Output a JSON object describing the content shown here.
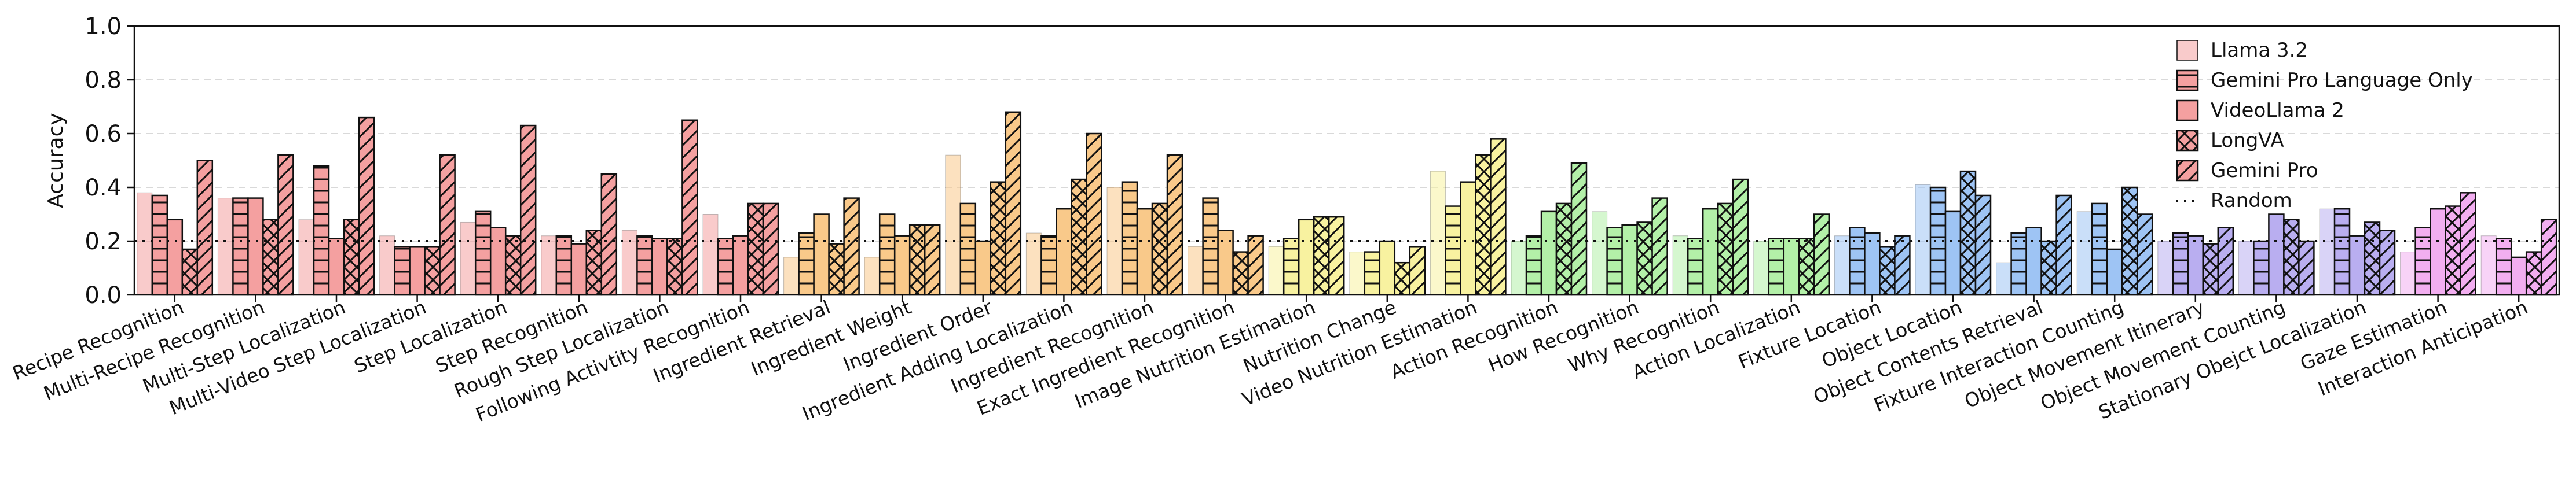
{
  "chart_data": {
    "type": "bar",
    "ylabel": "Accuracy",
    "ylim": [
      0,
      1.0
    ],
    "yticks": [
      "0.0",
      "0.2",
      "0.4",
      "0.6",
      "0.8",
      "1.0"
    ],
    "grid": "horizontal-dashed",
    "legend_position": "top-right",
    "random_baseline": {
      "name": "Random",
      "value": 0.2
    },
    "categories": [
      "Recipe Recognition",
      "Multi-Recipe Recognition",
      "Multi-Step Localization",
      "Multi-Video Step Localization",
      "Step Localization",
      "Step Recognition",
      "Rough Step Localization",
      "Following Activtity Recognition",
      "Ingredient Retrieval",
      "Ingredient Weight",
      "Ingredient Order",
      "Ingredient Adding Localization",
      "Ingredient Recognition",
      "Exact Ingredient Recognition",
      "Image Nutrition Estimation",
      "Nutrition Change",
      "Video Nutrition Estimation",
      "Action Recognition",
      "How Recognition",
      "Why Recognition",
      "Action Localization",
      "Fixture Location",
      "Object Location",
      "Object Contents Retrieval",
      "Fixture Interaction Counting",
      "Object Movement Itinerary",
      "Object Movement Counting",
      "Stationary Obejct Localization",
      "Gaze Estimation",
      "Interaction Anticipation"
    ],
    "category_colors": [
      "#f4a0a0",
      "#f4a0a0",
      "#f4a0a0",
      "#f4a0a0",
      "#f4a0a0",
      "#f4a0a0",
      "#f4a0a0",
      "#f4a0a0",
      "#f9c98a",
      "#f9c98a",
      "#f9c98a",
      "#f9c98a",
      "#f9c98a",
      "#f9c98a",
      "#f8f2a0",
      "#f8f2a0",
      "#f8f2a0",
      "#b3f0a8",
      "#b3f0a8",
      "#b3f0a8",
      "#b3f0a8",
      "#9ec4f4",
      "#9ec4f4",
      "#9ec4f4",
      "#9ec4f4",
      "#b9aef0",
      "#b9aef0",
      "#b9aef0",
      "#f2aef0",
      "#f2aef0"
    ],
    "series": [
      {
        "name": "Llama 3.2",
        "pattern": "none",
        "values": [
          0.38,
          0.36,
          0.28,
          0.22,
          0.27,
          0.22,
          0.24,
          0.3,
          0.14,
          0.14,
          0.52,
          0.23,
          0.4,
          0.18,
          0.18,
          0.16,
          0.46,
          0.2,
          0.31,
          0.22,
          0.2,
          0.22,
          0.41,
          0.12,
          0.31,
          0.2,
          0.2,
          0.32,
          0.16,
          0.22
        ]
      },
      {
        "name": "Gemini Pro Language Only",
        "pattern": "horizontal",
        "values": [
          0.37,
          0.36,
          0.48,
          0.18,
          0.31,
          0.22,
          0.22,
          0.21,
          0.23,
          0.3,
          0.34,
          0.22,
          0.42,
          0.36,
          0.21,
          0.16,
          0.33,
          0.22,
          0.25,
          0.21,
          0.21,
          0.25,
          0.4,
          0.23,
          0.34,
          0.23,
          0.2,
          0.32,
          0.25,
          0.21
        ]
      },
      {
        "name": "VideoLlama 2",
        "pattern": "none",
        "values": [
          0.28,
          0.36,
          0.21,
          0.18,
          0.25,
          0.19,
          0.21,
          0.22,
          0.3,
          0.22,
          0.2,
          0.32,
          0.32,
          0.24,
          0.28,
          0.2,
          0.42,
          0.31,
          0.26,
          0.32,
          0.21,
          0.23,
          0.31,
          0.25,
          0.17,
          0.22,
          0.3,
          0.22,
          0.32,
          0.14
        ]
      },
      {
        "name": "LongVA",
        "pattern": "diagonal-double",
        "values": [
          0.17,
          0.28,
          0.28,
          0.18,
          0.22,
          0.24,
          0.21,
          0.34,
          0.19,
          0.26,
          0.42,
          0.43,
          0.34,
          0.16,
          0.29,
          0.12,
          0.52,
          0.34,
          0.27,
          0.34,
          0.21,
          0.18,
          0.46,
          0.2,
          0.4,
          0.19,
          0.28,
          0.27,
          0.33,
          0.16
        ]
      },
      {
        "name": "Gemini Pro",
        "pattern": "diagonal",
        "values": [
          0.5,
          0.52,
          0.66,
          0.52,
          0.63,
          0.45,
          0.65,
          0.34,
          0.36,
          0.26,
          0.68,
          0.6,
          0.52,
          0.22,
          0.29,
          0.18,
          0.58,
          0.49,
          0.36,
          0.43,
          0.3,
          0.22,
          0.37,
          0.37,
          0.3,
          0.25,
          0.2,
          0.24,
          0.38,
          0.28
        ]
      }
    ]
  }
}
